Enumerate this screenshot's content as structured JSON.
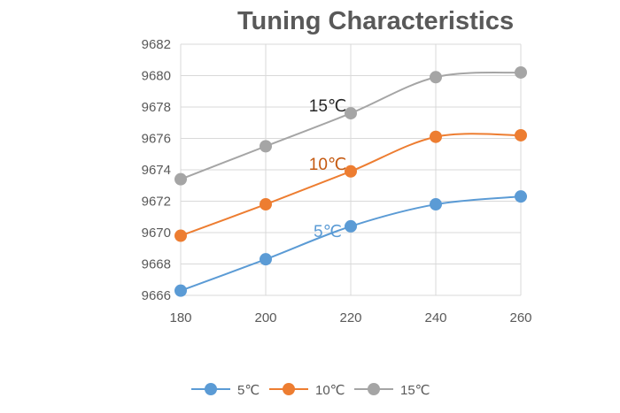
{
  "chart_data": {
    "type": "line",
    "title": "Tuning Characteristics",
    "xlabel": "",
    "ylabel": "",
    "x": [
      180,
      200,
      220,
      240,
      260
    ],
    "xlim": [
      180,
      260
    ],
    "ylim": [
      9666,
      9682
    ],
    "yticks": [
      9666,
      9668,
      9670,
      9672,
      9674,
      9676,
      9678,
      9680,
      9682
    ],
    "xticks": [
      180,
      200,
      220,
      240,
      260
    ],
    "grid": "vertical and horizontal",
    "legend_position": "bottom",
    "series": [
      {
        "name": "5℃",
        "color": "#5b9bd5",
        "values": [
          9666.3,
          9668.3,
          9670.4,
          9671.8,
          9672.3
        ]
      },
      {
        "name": "10℃",
        "color": "#ed7d31",
        "values": [
          9669.8,
          9671.8,
          9673.9,
          9676.1,
          9676.2
        ]
      },
      {
        "name": "15℃",
        "color": "#a5a5a5",
        "values": [
          9673.4,
          9675.5,
          9677.6,
          9679.9,
          9680.2
        ]
      }
    ],
    "annotations": [
      {
        "text": "15℃",
        "color": "#262626",
        "series": 2
      },
      {
        "text": "10℃",
        "color": "#c55a11",
        "series": 1
      },
      {
        "text": "5℃",
        "color": "#5b9bd5",
        "series": 0
      }
    ]
  }
}
